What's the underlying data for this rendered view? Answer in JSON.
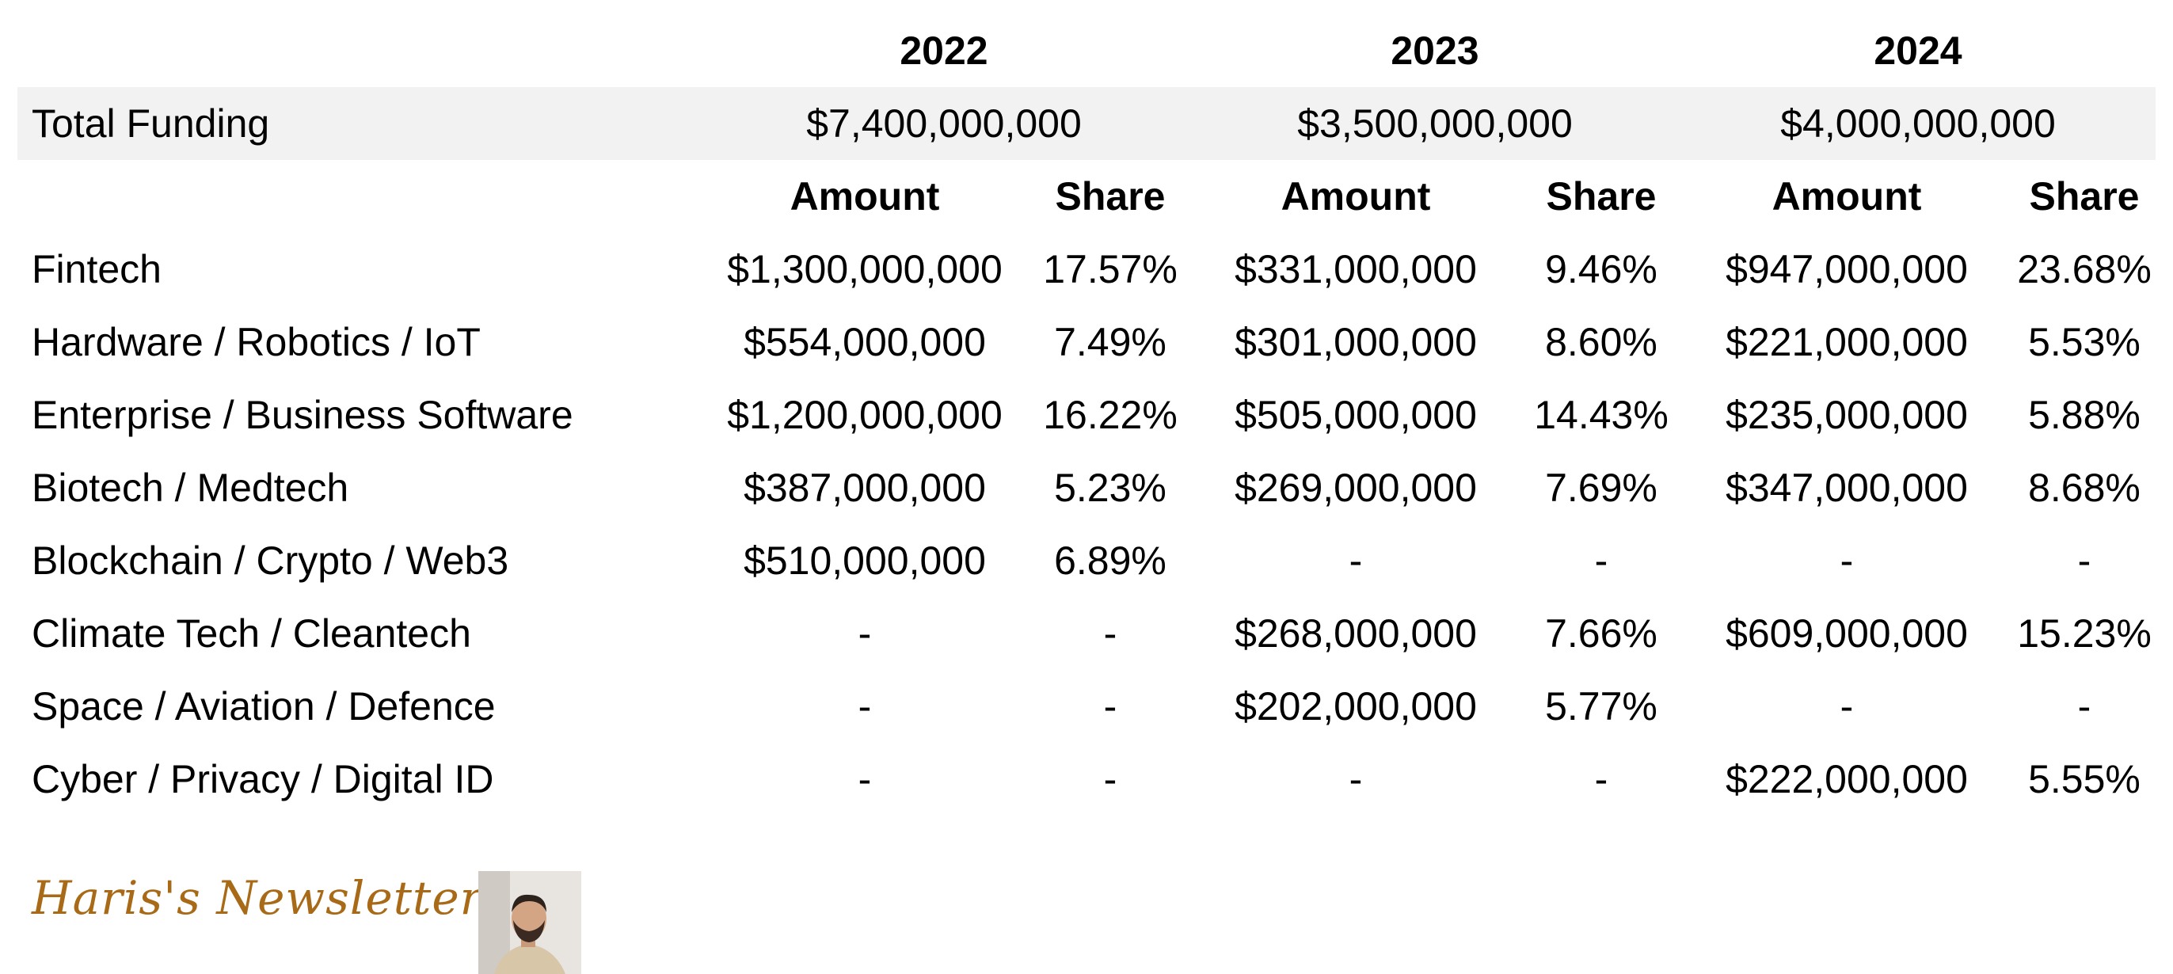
{
  "years": [
    "2022",
    "2023",
    "2024"
  ],
  "total": {
    "label": "Total Funding",
    "values": [
      "$7,400,000,000",
      "$3,500,000,000",
      "$4,000,000,000"
    ]
  },
  "subheaders": {
    "amount": "Amount",
    "share": "Share"
  },
  "rows": [
    {
      "sector": "Fintech",
      "cells": [
        "$1,300,000,000",
        "17.57%",
        "$331,000,000",
        "9.46%",
        "$947,000,000",
        "23.68%"
      ]
    },
    {
      "sector": "Hardware / Robotics / IoT",
      "cells": [
        "$554,000,000",
        "7.49%",
        "$301,000,000",
        "8.60%",
        "$221,000,000",
        "5.53%"
      ]
    },
    {
      "sector": "Enterprise / Business Software",
      "cells": [
        "$1,200,000,000",
        "16.22%",
        "$505,000,000",
        "14.43%",
        "$235,000,000",
        "5.88%"
      ]
    },
    {
      "sector": "Biotech / Medtech",
      "cells": [
        "$387,000,000",
        "5.23%",
        "$269,000,000",
        "7.69%",
        "$347,000,000",
        "8.68%"
      ]
    },
    {
      "sector": "Blockchain / Crypto / Web3",
      "cells": [
        "$510,000,000",
        "6.89%",
        "-",
        "-",
        "-",
        "-"
      ]
    },
    {
      "sector": "Climate Tech / Cleantech",
      "cells": [
        "-",
        "-",
        "$268,000,000",
        "7.66%",
        "$609,000,000",
        "15.23%"
      ]
    },
    {
      "sector": "Space / Aviation / Defence",
      "cells": [
        "-",
        "-",
        "$202,000,000",
        "5.77%",
        "-",
        "-"
      ]
    },
    {
      "sector": "Cyber / Privacy / Digital ID",
      "cells": [
        "-",
        "-",
        "-",
        "-",
        "$222,000,000",
        "5.55%"
      ]
    }
  ],
  "footer": {
    "newsletter": "Haris's Newsletter"
  },
  "colors": {
    "brand": "#a86a17",
    "shade": "#f2f2f2"
  }
}
